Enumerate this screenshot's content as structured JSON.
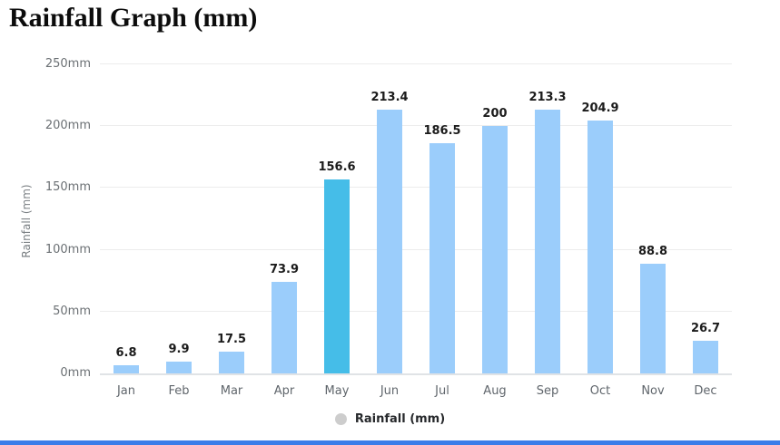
{
  "page": {
    "title": "Rainfall Graph (mm)"
  },
  "chart_data": {
    "type": "bar",
    "title": "Rainfall Graph (mm)",
    "categories": [
      "Jan",
      "Feb",
      "Mar",
      "Apr",
      "May",
      "Jun",
      "Jul",
      "Aug",
      "Sep",
      "Oct",
      "Nov",
      "Dec"
    ],
    "values": [
      6.8,
      9.9,
      17.5,
      73.9,
      156.6,
      213.4,
      186.5,
      200,
      213.3,
      204.9,
      88.8,
      26.7
    ],
    "data_labels_visible": true,
    "highlighted_category": "May",
    "xlabel": "",
    "ylabel": "Rainfall (mm)",
    "ylim": [
      0,
      250
    ],
    "y_tick_labels": [
      "0mm",
      "50mm",
      "100mm",
      "150mm",
      "200mm",
      "250mm"
    ],
    "grid": true,
    "legend": {
      "position": "bottom",
      "label": "Rainfall (mm)"
    }
  },
  "colors": {
    "bar": "#9bcdfb",
    "bar_highlight": "#45bde8",
    "gridline": "#ececec",
    "axis_label": "#6b7074",
    "value_label": "#1b1b1b",
    "legend_marker": "#cdcdcd",
    "bottom_accent_bar": "#3b7de9"
  }
}
